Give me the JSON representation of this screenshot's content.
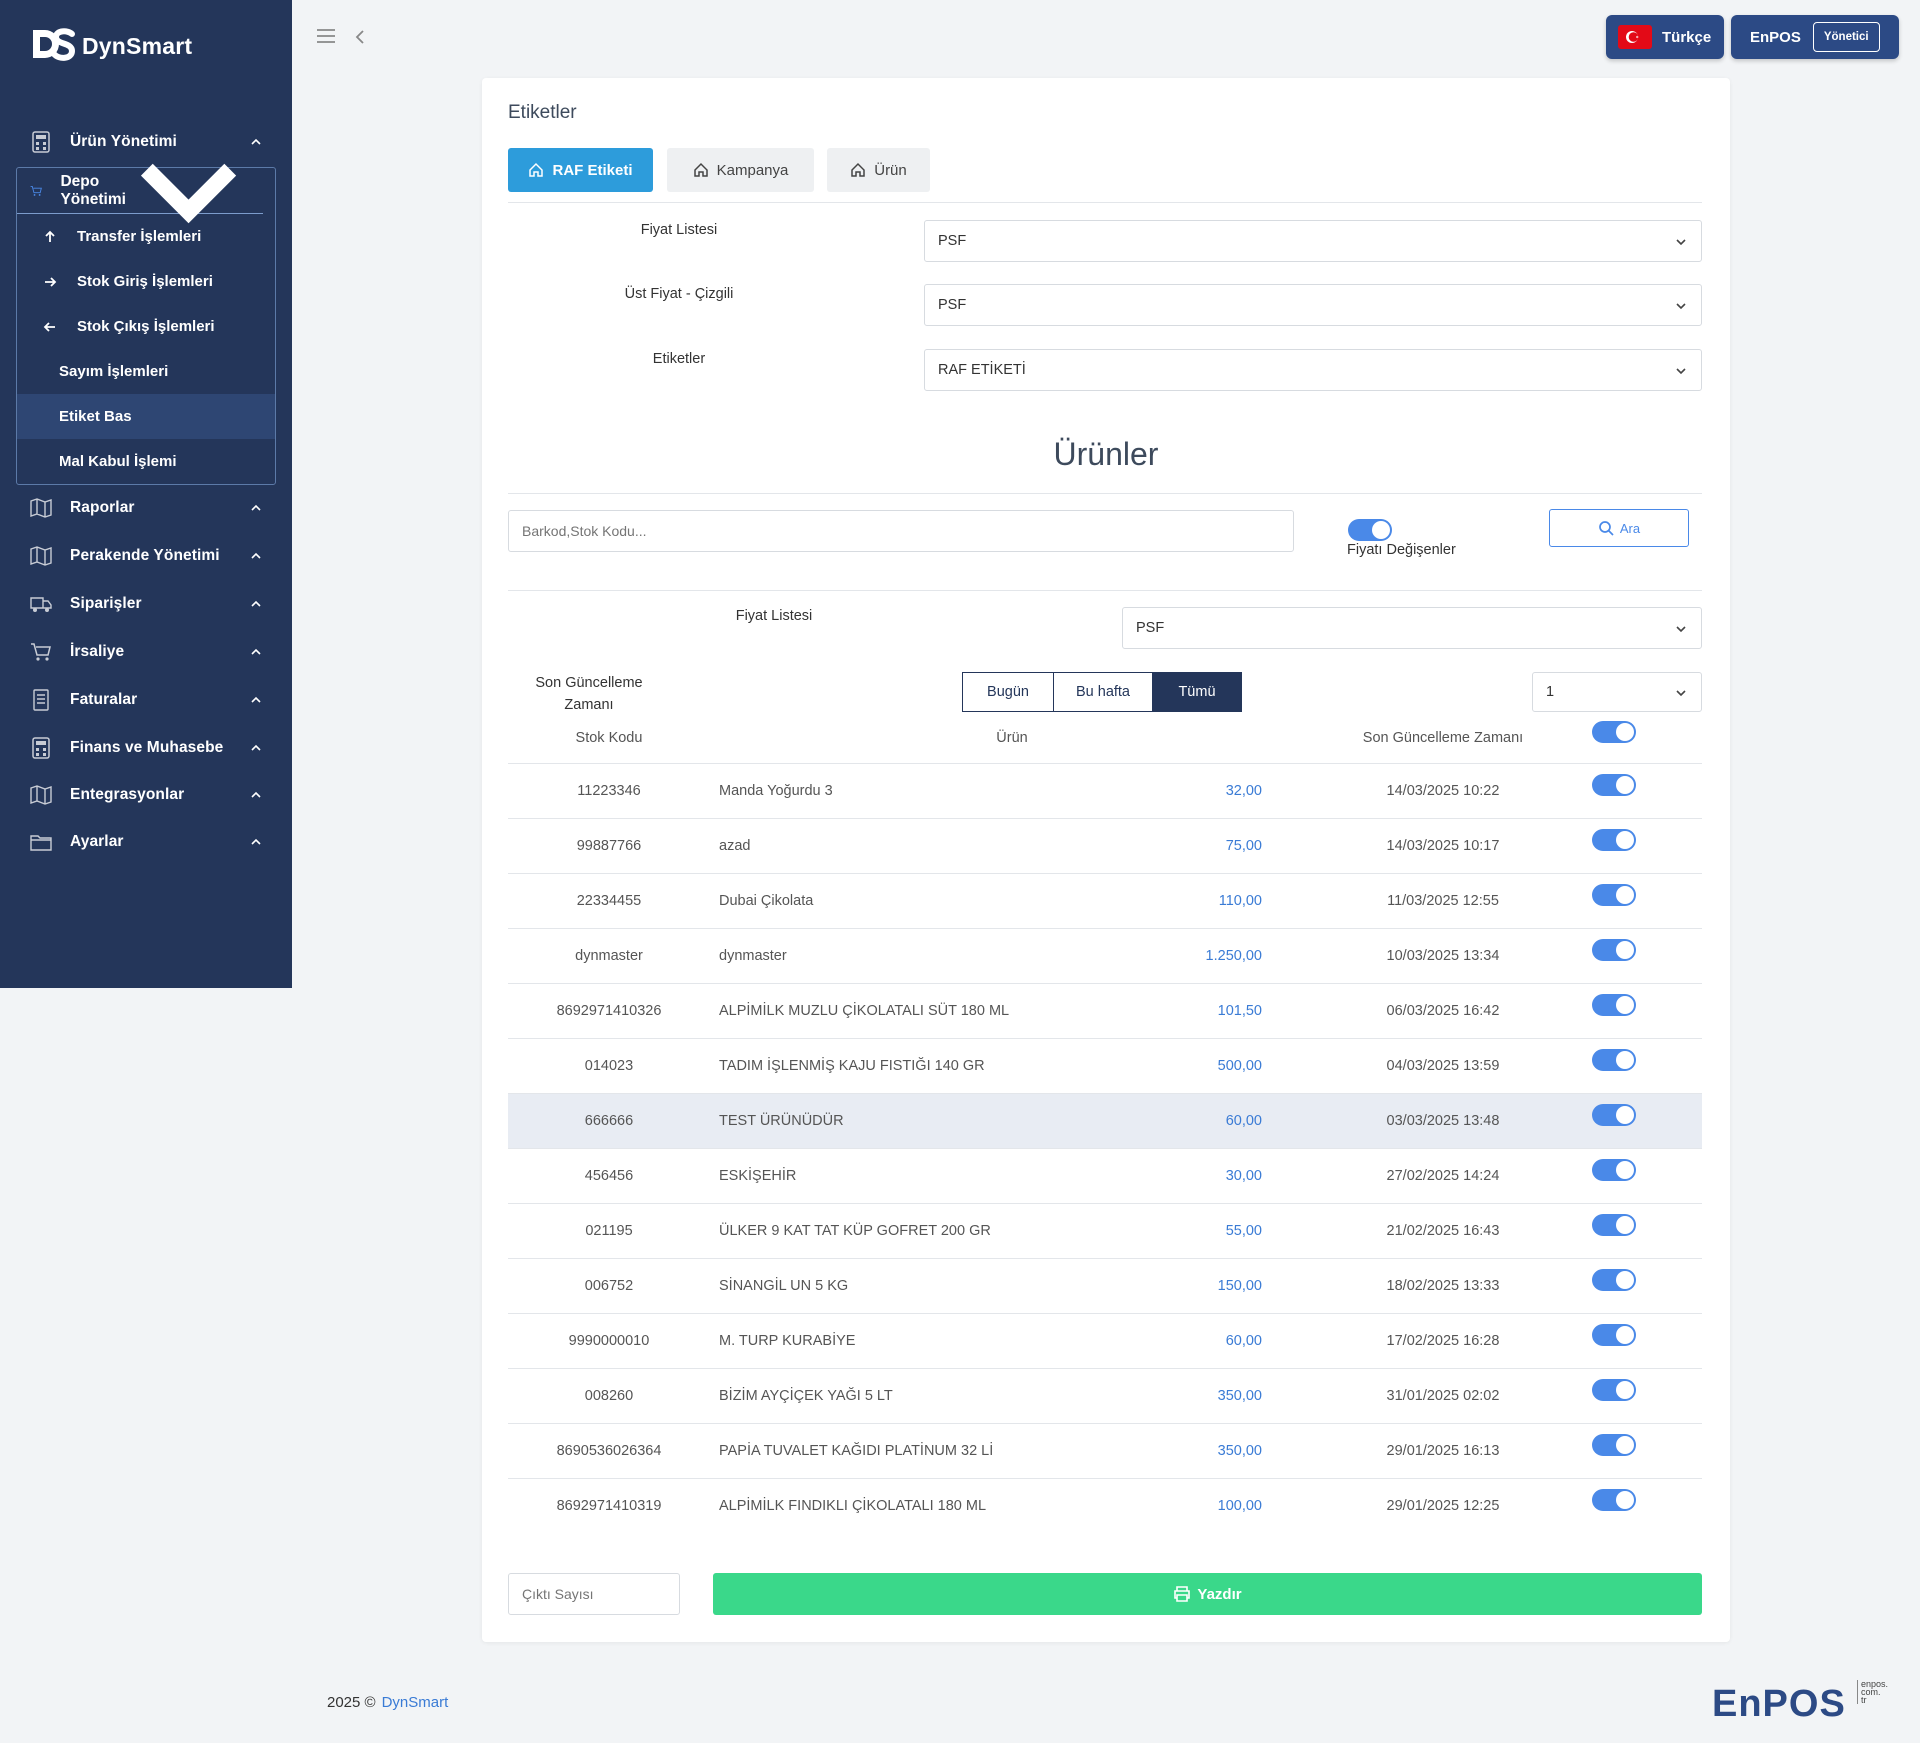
{
  "brand": "DynSmart",
  "sidebar": {
    "menu": [
      {
        "label": "Ürün Yönetimi"
      },
      {
        "label": "Depo Yönetimi"
      },
      {
        "label": "Raporlar"
      },
      {
        "label": "Perakende Yönetimi"
      },
      {
        "label": "Siparişler"
      },
      {
        "label": "İrsaliye"
      },
      {
        "label": "Faturalar"
      },
      {
        "label": "Finans ve Muhasebe"
      },
      {
        "label": "Entegrasyonlar"
      },
      {
        "label": "Ayarlar"
      }
    ],
    "depo_sub": [
      {
        "label": "Transfer İşlemleri"
      },
      {
        "label": "Stok Giriş İşlemleri"
      },
      {
        "label": "Stok Çıkış İşlemleri"
      },
      {
        "label": "Sayım İşlemleri"
      },
      {
        "label": "Etiket Bas",
        "active": true
      },
      {
        "label": "Mal Kabul İşlemi"
      }
    ]
  },
  "topbar": {
    "language": "Türkçe",
    "user": "EnPOS",
    "role": "Yönetici"
  },
  "page": {
    "title": "Etiketler",
    "tabs": [
      {
        "label": "RAF Etiketi",
        "active": true
      },
      {
        "label": "Kampanya"
      },
      {
        "label": "Ürün"
      }
    ],
    "fiyat_listesi_label": "Fiyat Listesi",
    "fiyat_listesi_value": "PSF",
    "ust_fiyat_label": "Üst Fiyat - Çizgili",
    "ust_fiyat_value": "PSF",
    "etiketler_label": "Etiketler",
    "etiketler_value": "RAF ETİKETİ",
    "products_title": "Ürünler",
    "search_placeholder": "Barkod,Stok Kodu...",
    "fiyati_degisenler_label": "Fiyatı Değişenler",
    "ara_label": "Ara",
    "filter_fiyat_listesi_label": "Fiyat Listesi",
    "filter_fiyat_listesi_value": "PSF",
    "son_guncelleme_label": "Son Güncelleme Zamanı",
    "segments": [
      {
        "label": "Bugün"
      },
      {
        "label": "Bu hafta"
      },
      {
        "label": "Tümü",
        "active": true
      }
    ],
    "page_select_value": "1",
    "columns": {
      "stok_kodu": "Stok Kodu",
      "urun": "Ürün",
      "son_guncelleme": "Son Güncelleme Zamanı"
    },
    "rows": [
      {
        "code": "11223346",
        "name": "Manda Yoğurdu 3",
        "price": "32,00",
        "date": "14/03/2025 10:22"
      },
      {
        "code": "99887766",
        "name": "azad",
        "price": "75,00",
        "date": "14/03/2025 10:17"
      },
      {
        "code": "22334455",
        "name": "Dubai Çikolata",
        "price": "110,00",
        "date": "11/03/2025 12:55"
      },
      {
        "code": "dynmaster",
        "name": "dynmaster",
        "price": "1.250,00",
        "date": "10/03/2025 13:34"
      },
      {
        "code": "8692971410326",
        "name": "ALPİMİLK MUZLU ÇİKOLATALI SÜT 180 ML",
        "price": "101,50",
        "date": "06/03/2025 16:42"
      },
      {
        "code": "014023",
        "name": "TADIM İŞLENMİŞ KAJU FISTIĞI 140 GR",
        "price": "500,00",
        "date": "04/03/2025 13:59"
      },
      {
        "code": "666666",
        "name": "TEST ÜRÜNÜDÜR",
        "price": "60,00",
        "date": "03/03/2025 13:48",
        "highlight": true
      },
      {
        "code": "456456",
        "name": "ESKİŞEHİR",
        "price": "30,00",
        "date": "27/02/2025 14:24"
      },
      {
        "code": "021195",
        "name": "ÜLKER 9 KAT TAT KÜP GOFRET 200 GR",
        "price": "55,00",
        "date": "21/02/2025 16:43"
      },
      {
        "code": "006752",
        "name": "SİNANGİL UN 5 KG",
        "price": "150,00",
        "date": "18/02/2025 13:33"
      },
      {
        "code": "9990000010",
        "name": "M. TURP KURABİYE",
        "price": "60,00",
        "date": "17/02/2025 16:28"
      },
      {
        "code": "008260",
        "name": "BİZİM AYÇİÇEK YAĞI 5 LT",
        "price": "350,00",
        "date": "31/01/2025 02:02"
      },
      {
        "code": "8690536026364",
        "name": "PAPİA TUVALET KAĞIDI PLATİNUM 32 Lİ",
        "price": "350,00",
        "date": "29/01/2025 16:13"
      },
      {
        "code": "8692971410319",
        "name": "ALPİMİLK FINDIKLI ÇİKOLATALI 180 ML",
        "price": "100,00",
        "date": "29/01/2025 12:25"
      }
    ],
    "cikti_placeholder": "Çıktı Sayısı",
    "yazdir_label": "Yazdır"
  },
  "footer": {
    "year": "2025 ©",
    "brand": "DynSmart"
  },
  "enpos_logo": {
    "text": "EnPOS",
    "sub": "enpos. com. tr"
  },
  "colors": {
    "sidebar": "#24365a",
    "accent": "#2d9cdb",
    "toggle": "#4a89e8",
    "print": "#3ad88a",
    "price": "#3a7bd5"
  }
}
